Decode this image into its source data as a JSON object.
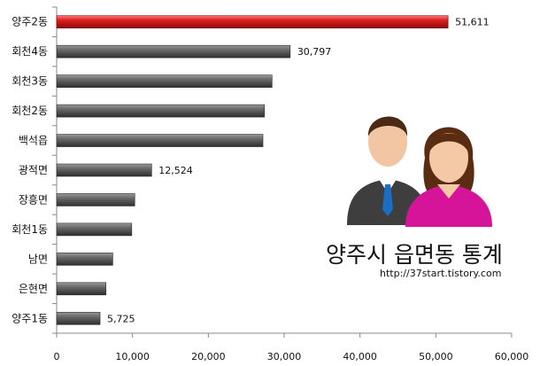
{
  "chart_data": {
    "type": "bar",
    "orientation": "horizontal",
    "categories": [
      "양주2동",
      "회천4동",
      "회천3동",
      "회천2동",
      "백석읍",
      "광적면",
      "장흥면",
      "회천1동",
      "남면",
      "은현면",
      "양주1동"
    ],
    "values": [
      51611,
      30797,
      28400,
      27400,
      27200,
      12524,
      10300,
      9900,
      7400,
      6500,
      5725
    ],
    "data_labels": [
      "51,611",
      "30,797",
      "",
      "",
      "",
      "12,524",
      "",
      "",
      "",
      "",
      "5,725"
    ],
    "highlight_color": "#e02020",
    "bar_color": "#555555",
    "xlim": [
      0,
      60000
    ],
    "xticks": [
      0,
      10000,
      20000,
      30000,
      40000,
      50000,
      60000
    ],
    "xtick_labels": [
      "0",
      "10,000",
      "20,000",
      "30,000",
      "40,000",
      "50,000",
      "60,000"
    ],
    "grid": false,
    "legend": "none"
  },
  "overlay": {
    "title": "양주시 읍면동 통계",
    "url": "http://37start.tistory.com",
    "icon": "people-icon"
  }
}
